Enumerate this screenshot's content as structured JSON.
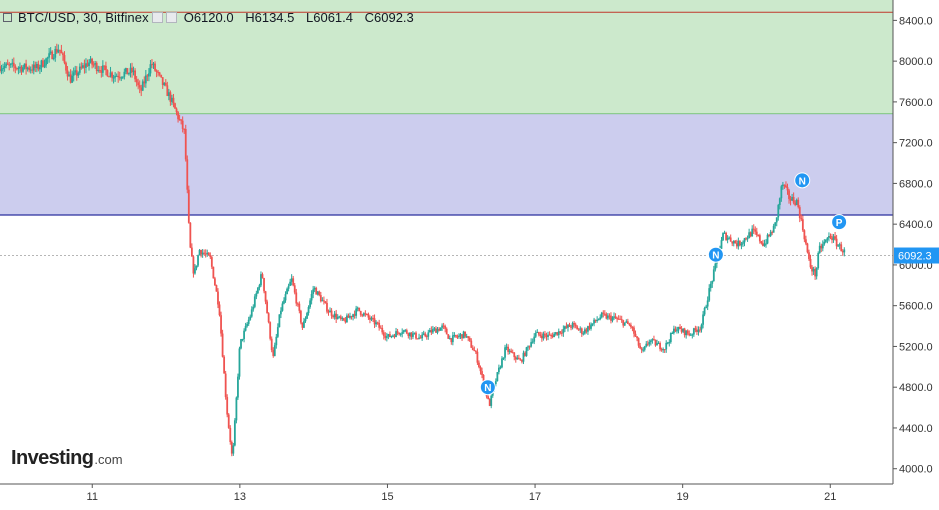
{
  "legend": {
    "symbol": "BTC/USD, 30, Bitfinex",
    "open_label": "O",
    "open": "6120.0",
    "high_label": "H",
    "high": "6134.5",
    "low_label": "L",
    "low": "6061.4",
    "close_label": "C",
    "close": "6092.3"
  },
  "logo": {
    "name": "Investing",
    "tld": ".com"
  },
  "price_badge": "6092.3",
  "chart_data": {
    "type": "candlestick",
    "symbol": "BTC/USD",
    "interval": "30",
    "exchange": "Bitfinex",
    "grid": false,
    "x_range": [
      9.75,
      21.85
    ],
    "y_range": [
      3850,
      8600
    ],
    "y_ticks": [
      4000,
      4400,
      4800,
      5200,
      5600,
      6000,
      6400,
      6800,
      7200,
      7600,
      8000,
      8400
    ],
    "y_tick_labels": [
      "4000.0",
      "4400.0",
      "4800.0",
      "5200.0",
      "5600.0",
      "6000.0",
      "6400.0",
      "6800.0",
      "7200.0",
      "7600.0",
      "8000.0",
      "8400.0"
    ],
    "x_ticks": [
      11,
      13,
      15,
      17,
      19,
      21
    ],
    "x_tick_labels": [
      "11",
      "13",
      "15",
      "17",
      "19",
      "21"
    ],
    "zones": [
      {
        "from": 7480,
        "to": 8600,
        "color": "#cce9cc",
        "line": "#4caf50"
      },
      {
        "from": 6490,
        "to": 7480,
        "color": "#cccdee",
        "line": "#2a2f9e"
      }
    ],
    "level_lines": [
      {
        "value": 8480,
        "color": "#c0392b"
      }
    ],
    "last_price": 6092.3,
    "up_color": "#26a69a",
    "down_color": "#ef5350",
    "path": [
      [
        9.75,
        7950
      ],
      [
        10.25,
        7930
      ],
      [
        10.55,
        8130
      ],
      [
        10.7,
        7820
      ],
      [
        10.95,
        7990
      ],
      [
        11.3,
        7860
      ],
      [
        11.55,
        7900
      ],
      [
        11.65,
        7690
      ],
      [
        11.8,
        7980
      ],
      [
        12.05,
        7650
      ],
      [
        12.25,
        7300
      ],
      [
        12.32,
        6200
      ],
      [
        12.38,
        5900
      ],
      [
        12.45,
        6150
      ],
      [
        12.6,
        6060
      ],
      [
        12.72,
        5580
      ],
      [
        12.82,
        4600
      ],
      [
        12.9,
        4080
      ],
      [
        13.0,
        5220
      ],
      [
        13.15,
        5520
      ],
      [
        13.3,
        5920
      ],
      [
        13.45,
        5080
      ],
      [
        13.55,
        5550
      ],
      [
        13.7,
        5860
      ],
      [
        13.85,
        5380
      ],
      [
        14.0,
        5780
      ],
      [
        14.2,
        5550
      ],
      [
        14.4,
        5440
      ],
      [
        14.6,
        5560
      ],
      [
        14.85,
        5420
      ],
      [
        15.0,
        5290
      ],
      [
        15.2,
        5360
      ],
      [
        15.45,
        5280
      ],
      [
        15.6,
        5350
      ],
      [
        15.75,
        5390
      ],
      [
        15.85,
        5270
      ],
      [
        16.05,
        5320
      ],
      [
        16.2,
        5120
      ],
      [
        16.3,
        4850
      ],
      [
        16.38,
        4620
      ],
      [
        16.48,
        4900
      ],
      [
        16.6,
        5180
      ],
      [
        16.8,
        5050
      ],
      [
        17.0,
        5320
      ],
      [
        17.2,
        5300
      ],
      [
        17.5,
        5410
      ],
      [
        17.65,
        5340
      ],
      [
        17.9,
        5500
      ],
      [
        18.1,
        5470
      ],
      [
        18.3,
        5400
      ],
      [
        18.45,
        5130
      ],
      [
        18.55,
        5260
      ],
      [
        18.75,
        5180
      ],
      [
        18.9,
        5380
      ],
      [
        19.1,
        5320
      ],
      [
        19.25,
        5400
      ],
      [
        19.35,
        5720
      ],
      [
        19.45,
        6000
      ],
      [
        19.55,
        6300
      ],
      [
        19.75,
        6200
      ],
      [
        19.95,
        6330
      ],
      [
        20.1,
        6200
      ],
      [
        20.25,
        6380
      ],
      [
        20.35,
        6800
      ],
      [
        20.45,
        6650
      ],
      [
        20.55,
        6620
      ],
      [
        20.65,
        6280
      ],
      [
        20.72,
        6000
      ],
      [
        20.8,
        5900
      ],
      [
        20.85,
        6150
      ],
      [
        21.0,
        6290
      ],
      [
        21.1,
        6200
      ],
      [
        21.2,
        6120
      ]
    ],
    "markers": [
      {
        "x": 16.36,
        "y": 4800,
        "label": "N"
      },
      {
        "x": 19.45,
        "y": 6100,
        "label": "N"
      },
      {
        "x": 20.62,
        "y": 6830,
        "label": "N"
      },
      {
        "x": 21.12,
        "y": 6420,
        "label": "P"
      }
    ]
  }
}
